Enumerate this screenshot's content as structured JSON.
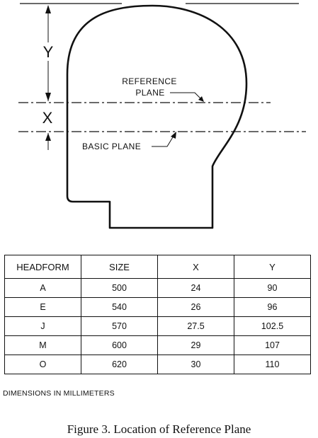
{
  "diagram": {
    "dimension_y_label": "Y",
    "dimension_x_label": "X",
    "reference_plane_line1": "REFERENCE",
    "reference_plane_line2": "PLANE",
    "basic_plane_label": "BASIC PLANE"
  },
  "table": {
    "headers": [
      "HEADFORM",
      "SIZE",
      "X",
      "Y"
    ],
    "rows": [
      [
        "A",
        "500",
        "24",
        "90"
      ],
      [
        "E",
        "540",
        "26",
        "96"
      ],
      [
        "J",
        "570",
        "27.5",
        "102.5"
      ],
      [
        "M",
        "600",
        "29",
        "107"
      ],
      [
        "O",
        "620",
        "30",
        "110"
      ]
    ]
  },
  "note": "DIMENSIONS IN MILLIMETERS",
  "caption": "Figure 3.  Location of Reference Plane"
}
